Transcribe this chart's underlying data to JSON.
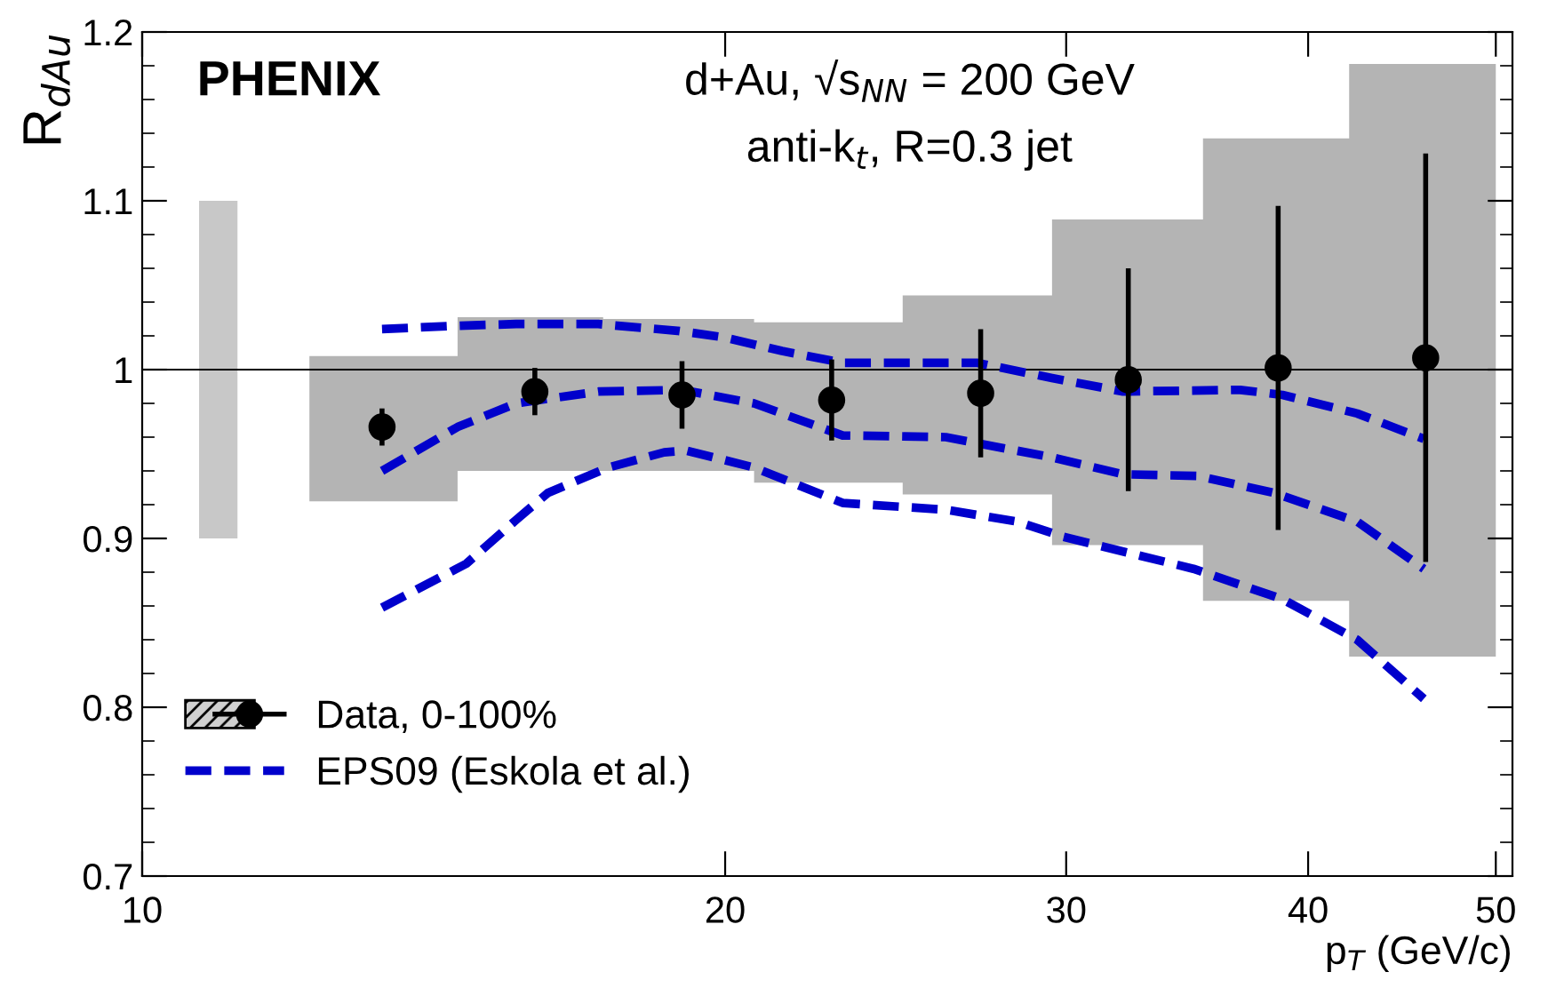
{
  "chart_data": {
    "type": "scatter",
    "xlabel": "p$_{T}$ (GeV/c)",
    "ylabel": "R$_{dAu}$",
    "annotations": [
      "PHENIX",
      "d+Au, √s$_{NN}$ = 200 GeV",
      "anti-k$_{t}$, R=0.3 jet"
    ],
    "log": "x",
    "xlim": [
      10,
      51
    ],
    "xticks": [
      10,
      20,
      30,
      40,
      50
    ],
    "ylim": [
      0.7,
      1.2
    ],
    "yticks": [
      0.7,
      0.8,
      0.9,
      1,
      1.1,
      1.2
    ],
    "grid": false,
    "legend": "bottom left",
    "ref_lines": [
      {
        "axis": "y",
        "value": 1,
        "color": "#000000"
      }
    ],
    "series": [
      {
        "type": "step",
        "color": "#c8c8c8",
        "x": [
          10.7,
          11.2
        ],
        "values": [
          null,
          null
        ],
        "lower": [
          0.9,
          0.9
        ],
        "upper": [
          1.1,
          1.1
        ]
      },
      {
        "type": "step",
        "color": "#b4b4b4",
        "x": [
          12.2,
          14.55,
          17.3,
          20.7,
          24.7,
          29.5,
          35.3,
          42.0,
          50.0
        ],
        "values": [
          null,
          null,
          null,
          null,
          null,
          null,
          null,
          null,
          null
        ],
        "lower": [
          0.922,
          0.94,
          0.94,
          0.933,
          0.926,
          0.896,
          0.863,
          0.83,
          0.83
        ],
        "upper": [
          1.008,
          1.031,
          1.03,
          1.028,
          1.044,
          1.089,
          1.137,
          1.181,
          1.181
        ]
      },
      {
        "type": "line",
        "color": "#0000cc",
        "line_style": "dashed",
        "marker": "none",
        "x": [
          13.3,
          14.55,
          15.6,
          17.2,
          18.9,
          20.0,
          21.4,
          23.0,
          27.0,
          29.5,
          32.1,
          36.9,
          38.8,
          42.4,
          45.9
        ],
        "values": [
          1.024,
          1.026,
          1.027,
          1.027,
          1.023,
          1.019,
          1.011,
          1.004,
          1.004,
          0.995,
          0.987,
          0.988,
          0.985,
          0.974,
          0.959
        ]
      },
      {
        "type": "line",
        "name": "EPS09 (Eskola et al.)",
        "color": "#0000cc",
        "line_style": "dashed",
        "marker": "none",
        "x": [
          13.3,
          14.55,
          15.6,
          17.2,
          19.0,
          20.7,
          23.0,
          26.0,
          29.5,
          32.1,
          35.1,
          38.4,
          42.4,
          45.9
        ],
        "values": [
          0.94,
          0.966,
          0.98,
          0.987,
          0.988,
          0.98,
          0.961,
          0.96,
          0.948,
          0.938,
          0.937,
          0.927,
          0.91,
          0.882
        ]
      },
      {
        "type": "line",
        "color": "#0000cc",
        "line_style": "dashed",
        "marker": "none",
        "x": [
          13.3,
          14.7,
          15.6,
          16.2,
          17.4,
          18.6,
          19.1,
          20.7,
          23.0,
          26.0,
          28.3,
          29.9,
          34.9,
          38.8,
          42.4,
          45.9
        ],
        "values": [
          0.859,
          0.885,
          0.911,
          0.927,
          0.942,
          0.951,
          0.952,
          0.942,
          0.921,
          0.917,
          0.91,
          0.901,
          0.882,
          0.864,
          0.84,
          0.805
        ]
      },
      {
        "name": "Data, 0-100%",
        "color": "#000000",
        "marker": "circle",
        "x": [
          13.3,
          15.95,
          19.0,
          22.7,
          27.1,
          32.3,
          38.6,
          46.0
        ],
        "values": [
          0.966,
          0.987,
          0.985,
          0.982,
          0.986,
          0.994,
          1.001,
          1.007
        ],
        "errors": [
          0.011,
          0.014,
          0.02,
          0.024,
          0.038,
          0.066,
          0.096,
          0.121
        ]
      }
    ]
  }
}
